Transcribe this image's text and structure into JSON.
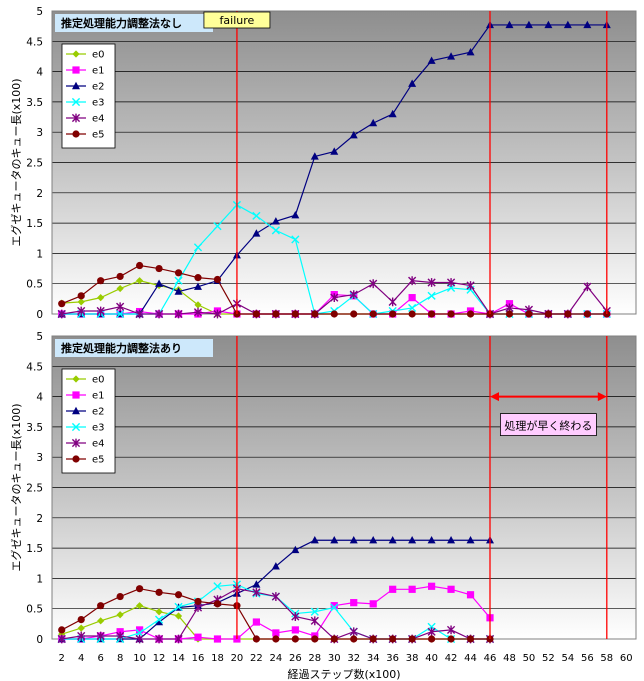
{
  "chart_data": [
    {
      "type": "line",
      "title": "推定処理能力調整法なし",
      "ylabel": "エグゼキュータのキュー長(x100)",
      "ylim": [
        0,
        5
      ],
      "yticks": [
        0,
        0.5,
        1,
        1.5,
        2,
        2.5,
        3,
        3.5,
        4,
        4.5,
        5
      ],
      "grid": true,
      "legend": "top-left",
      "x": [
        2,
        4,
        6,
        8,
        10,
        12,
        14,
        16,
        18,
        20,
        22,
        24,
        26,
        28,
        30,
        32,
        34,
        36,
        38,
        40,
        42,
        44,
        46,
        48,
        50,
        52,
        54,
        56,
        58
      ],
      "annotations": [
        {
          "kind": "vline",
          "x": 20,
          "text": "failure"
        },
        {
          "kind": "vline",
          "x": 46,
          "text": ""
        },
        {
          "kind": "vline",
          "x": 58,
          "text": ""
        }
      ],
      "series": [
        {
          "name": "e0",
          "color": "#99cc00",
          "marker": "diamond",
          "values": [
            0.18,
            0.2,
            0.27,
            0.42,
            0.55,
            0.47,
            0.4,
            0.15,
            0,
            0,
            0,
            0,
            0,
            0,
            0,
            0,
            0,
            0,
            0,
            0,
            0,
            0,
            0,
            0,
            0,
            0,
            0,
            0,
            0
          ]
        },
        {
          "name": "e1",
          "color": "#ff00ff",
          "marker": "square",
          "values": [
            0,
            0,
            0,
            0,
            0.04,
            0,
            0,
            0,
            0.05,
            0,
            0,
            0,
            0,
            0,
            0.32,
            0.3,
            0,
            0,
            0.27,
            0,
            0,
            0.05,
            0,
            0.17,
            0,
            0,
            0,
            0,
            0
          ]
        },
        {
          "name": "e2",
          "color": "#000080",
          "marker": "triangle",
          "values": [
            0,
            0,
            0,
            0,
            0,
            0.5,
            0.37,
            0.45,
            0.55,
            0.97,
            1.33,
            1.53,
            1.63,
            2.6,
            2.68,
            2.95,
            3.15,
            3.3,
            3.8,
            4.18,
            4.25,
            4.32,
            4.77,
            4.77,
            4.77,
            4.77,
            4.77,
            4.77,
            4.77
          ]
        },
        {
          "name": "e3",
          "color": "#00ffff",
          "marker": "x",
          "values": [
            0,
            0,
            0,
            0,
            0,
            0,
            0.55,
            1.1,
            1.45,
            1.8,
            1.62,
            1.38,
            1.23,
            0,
            0.05,
            0.3,
            0,
            0.05,
            0.1,
            0.3,
            0.43,
            0.4,
            0,
            0,
            0,
            0,
            0,
            0,
            0
          ]
        },
        {
          "name": "e4",
          "color": "#800080",
          "marker": "star",
          "values": [
            0,
            0.05,
            0.05,
            0.12,
            0,
            0,
            0,
            0.03,
            0,
            0.17,
            0,
            0,
            0,
            0,
            0.27,
            0.32,
            0.5,
            0.2,
            0.55,
            0.52,
            0.52,
            0.47,
            0,
            0.1,
            0.07,
            0,
            0,
            0.45,
            0.05
          ]
        },
        {
          "name": "e5",
          "color": "#800000",
          "marker": "circle",
          "values": [
            0.17,
            0.3,
            0.55,
            0.62,
            0.8,
            0.75,
            0.68,
            0.6,
            0.57,
            0,
            0,
            0,
            0,
            0,
            0,
            0,
            0,
            0,
            0,
            0,
            0,
            0,
            0,
            0,
            0,
            0,
            0,
            0,
            0
          ]
        }
      ]
    },
    {
      "type": "line",
      "title": "推定処理能力調整法あり",
      "xlabel": "経過ステップ数(x100)",
      "ylabel": "エグゼキュータのキュー長(x100)",
      "ylim": [
        0,
        5
      ],
      "yticks": [
        0,
        0.5,
        1,
        1.5,
        2,
        2.5,
        3,
        3.5,
        4,
        4.5,
        5
      ],
      "xticks": [
        2,
        4,
        6,
        8,
        10,
        12,
        14,
        16,
        18,
        20,
        22,
        24,
        26,
        28,
        30,
        32,
        34,
        36,
        38,
        40,
        42,
        44,
        46,
        48,
        50,
        52,
        54,
        56,
        58,
        60
      ],
      "grid": true,
      "legend": "top-left",
      "x": [
        2,
        4,
        6,
        8,
        10,
        12,
        14,
        16,
        18,
        20,
        22,
        24,
        26,
        28,
        30,
        32,
        34,
        36,
        38,
        40,
        42,
        44,
        46
      ],
      "annotations": [
        {
          "kind": "vline",
          "x": 20,
          "text": ""
        },
        {
          "kind": "vline",
          "x": 46,
          "text": ""
        },
        {
          "kind": "vline",
          "x": 58,
          "text": ""
        },
        {
          "kind": "arrow",
          "from": 46,
          "to": 58,
          "y": 4.0,
          "text": "処理が早く終わる"
        }
      ],
      "series": [
        {
          "name": "e0",
          "color": "#99cc00",
          "marker": "diamond",
          "values": [
            0.08,
            0.18,
            0.3,
            0.4,
            0.55,
            0.45,
            0.38,
            0,
            0,
            0,
            0,
            0,
            0,
            0,
            0,
            0,
            0,
            0,
            0,
            0,
            0,
            0,
            0
          ]
        },
        {
          "name": "e1",
          "color": "#ff00ff",
          "marker": "square",
          "values": [
            0,
            0,
            0.05,
            0.12,
            0.15,
            0,
            0,
            0.03,
            0,
            0,
            0.28,
            0.1,
            0.15,
            0.05,
            0.55,
            0.6,
            0.58,
            0.82,
            0.82,
            0.87,
            0.82,
            0.73,
            0.35
          ]
        },
        {
          "name": "e2",
          "color": "#000080",
          "marker": "triangle",
          "values": [
            0,
            0,
            0,
            0,
            0,
            0.28,
            0.52,
            0.55,
            0.6,
            0.75,
            0.9,
            1.2,
            1.47,
            1.63,
            1.63,
            1.63,
            1.63,
            1.63,
            1.63,
            1.63,
            1.63,
            1.63,
            1.63
          ]
        },
        {
          "name": "e3",
          "color": "#00ffff",
          "marker": "x",
          "values": [
            0,
            0,
            0,
            0,
            0.1,
            0.32,
            0.53,
            0.62,
            0.87,
            0.9,
            0.75,
            0.7,
            0.42,
            0.45,
            0.52,
            0.12,
            0,
            0,
            0,
            0.2,
            0,
            0,
            0
          ]
        },
        {
          "name": "e4",
          "color": "#800080",
          "marker": "star",
          "values": [
            0,
            0.05,
            0.05,
            0.05,
            0,
            0,
            0,
            0.52,
            0.65,
            0.83,
            0.77,
            0.7,
            0.37,
            0.3,
            0,
            0.12,
            0,
            0,
            0,
            0.12,
            0.15,
            0,
            0
          ]
        },
        {
          "name": "e5",
          "color": "#800000",
          "marker": "circle",
          "values": [
            0.15,
            0.32,
            0.55,
            0.7,
            0.83,
            0.77,
            0.73,
            0.62,
            0.58,
            0.55,
            0,
            0,
            0,
            0,
            0,
            0,
            0,
            0,
            0,
            0,
            0,
            0,
            0
          ]
        }
      ]
    }
  ]
}
